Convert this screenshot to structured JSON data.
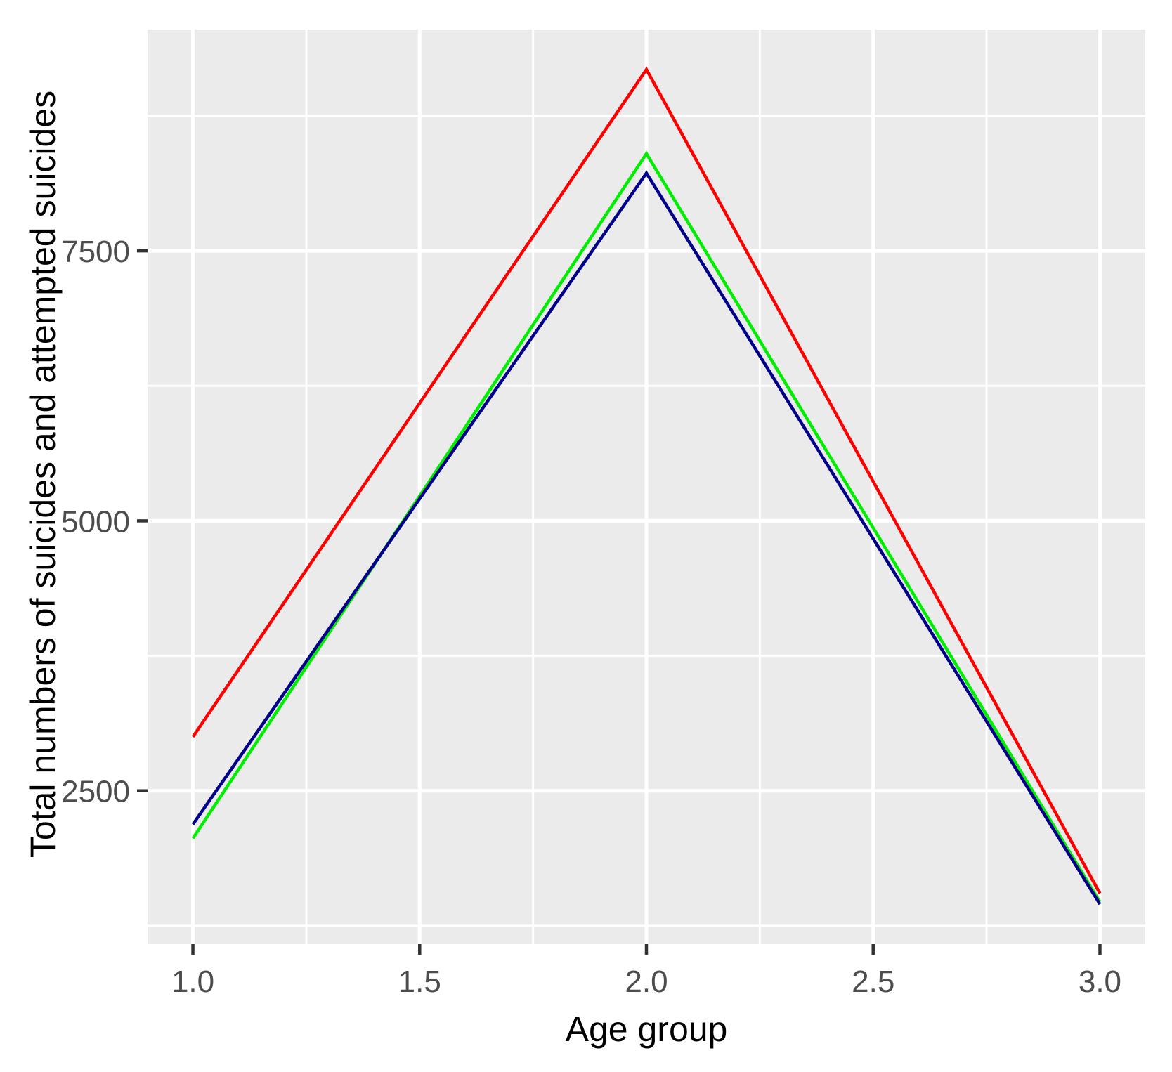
{
  "chart_data": {
    "type": "line",
    "title": "",
    "xlabel": "Age group",
    "ylabel": "Total numbers of suicides and attempted suicides",
    "x": [
      1.0,
      2.0,
      3.0
    ],
    "series": [
      {
        "name": "red-line",
        "color": "#FF0000",
        "values": [
          3000,
          9180,
          1550
        ]
      },
      {
        "name": "green-line",
        "color": "#00EE00",
        "values": [
          2060,
          8400,
          1470
        ]
      },
      {
        "name": "navy-line",
        "color": "#00008B",
        "values": [
          2190,
          8220,
          1450
        ]
      }
    ],
    "xlim": [
      0.9,
      3.1
    ],
    "ylim": [
      1080,
      9550
    ],
    "x_ticks": {
      "values": [
        1.0,
        1.5,
        2.0,
        2.5,
        3.0
      ],
      "labels": [
        "1.0",
        "1.5",
        "2.0",
        "2.5",
        "3.0"
      ]
    },
    "y_ticks": {
      "values": [
        2500,
        5000,
        7500
      ],
      "labels": [
        "2500",
        "5000",
        "7500"
      ]
    },
    "x_minor": [
      1.25,
      1.75,
      2.25,
      2.75
    ],
    "y_minor": [
      1250,
      3750,
      6250,
      8750
    ],
    "grid": "on",
    "legend": "none",
    "panel_bg": "#EBEBEB",
    "grid_color": "#FFFFFF",
    "tick_mark_color": "#333333",
    "axis_text_color": "#4D4D4D",
    "axis_title_color": "#000000",
    "plot_bg": "#FFFFFF"
  }
}
